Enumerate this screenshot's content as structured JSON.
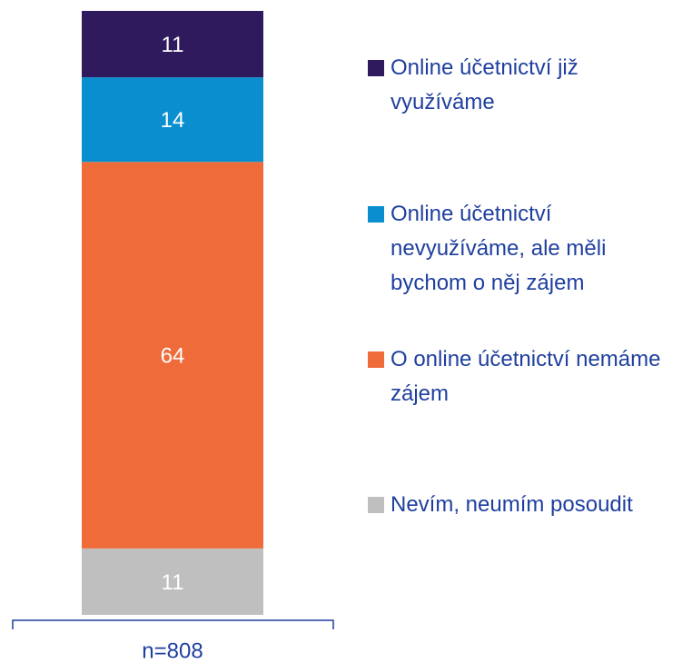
{
  "chart_data": {
    "type": "stacked-bar",
    "categories": [
      "n=808"
    ],
    "series": [
      {
        "name": "Nevím, neumím posoudit",
        "color": "#bfbfbf",
        "values": [
          11
        ]
      },
      {
        "name": "O online účetnictví nemáme zájem",
        "color": "#ef6b3a",
        "values": [
          64
        ]
      },
      {
        "name": "Online účetnictví nevyužíváme, ale měli bychom o něj zájem",
        "color": "#0b8ecf",
        "values": [
          14
        ]
      },
      {
        "name": "Online účetnictví již využíváme",
        "color": "#2e1a5c",
        "values": [
          11
        ]
      }
    ],
    "legend": "right"
  }
}
